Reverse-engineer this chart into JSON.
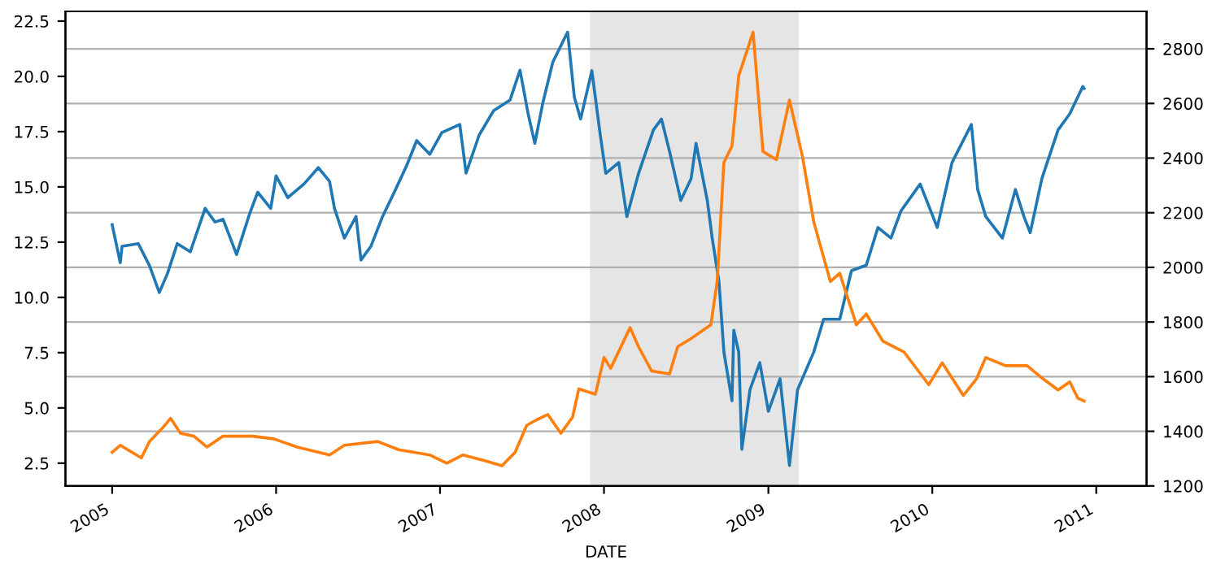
{
  "chart_data": {
    "type": "line",
    "xlabel": "DATE",
    "grid": "y2",
    "xlim": [
      "2004-09-19",
      "2011-04-23"
    ],
    "xticks": [
      "2005",
      "2006",
      "2007",
      "2008",
      "2009",
      "2010",
      "2011"
    ],
    "ylim": [
      1.47,
      22.94
    ],
    "yticks": [
      {
        "value": 2.5,
        "label": "2.5"
      },
      {
        "value": 5,
        "label": "5.0"
      },
      {
        "value": 7.5,
        "label": "7.5"
      },
      {
        "value": 10,
        "label": "10.0"
      },
      {
        "value": 12.5,
        "label": "12.5"
      },
      {
        "value": 15,
        "label": "15.0"
      },
      {
        "value": 17.5,
        "label": "17.5"
      },
      {
        "value": 20,
        "label": "20.0"
      },
      {
        "value": 22.5,
        "label": "22.5"
      }
    ],
    "y2lim": [
      1200,
      2937
    ],
    "y2ticks": [
      1200,
      1400,
      1600,
      1800,
      2000,
      2200,
      2400,
      2600,
      2800
    ],
    "bands": [
      {
        "axis": "x",
        "from": "2007-12-01",
        "to": "2009-03-10",
        "color": "#e5e5e5"
      }
    ],
    "series": [
      {
        "color": "#1f77b4",
        "axis": "y2",
        "x": [
          "2005-01-01",
          "2005-01-19",
          "2005-01-23",
          "2005-02-28",
          "2005-03-25",
          "2005-04-16",
          "2005-05-04",
          "2005-05-26",
          "2005-06-24",
          "2005-07-27",
          "2005-08-18",
          "2005-09-05",
          "2005-10-05",
          "2005-11-03",
          "2005-11-21",
          "2005-12-20",
          "2006-01-01",
          "2006-01-27",
          "2006-03-04",
          "2006-04-05",
          "2006-04-30",
          "2006-05-11",
          "2006-06-02",
          "2006-06-28",
          "2006-07-09",
          "2006-07-31",
          "2006-08-26",
          "2006-09-24",
          "2006-10-19",
          "2006-11-10",
          "2006-12-09",
          "2007-01-05",
          "2007-02-14",
          "2007-02-28",
          "2007-03-29",
          "2007-04-30",
          "2007-06-06",
          "2007-06-28",
          "2007-07-16",
          "2007-07-31",
          "2007-08-18",
          "2007-09-09",
          "2007-10-12",
          "2007-10-27",
          "2007-11-10",
          "2007-12-05",
          "2007-12-24",
          "2008-01-05",
          "2008-02-03",
          "2008-02-21",
          "2008-03-18",
          "2008-04-20",
          "2008-05-08",
          "2008-05-26",
          "2008-06-20",
          "2008-07-13",
          "2008-07-24",
          "2008-08-18",
          "2008-08-29",
          "2008-09-13",
          "2008-09-24",
          "2008-10-12",
          "2008-10-16",
          "2008-10-27",
          "2008-11-03",
          "2008-11-21",
          "2008-12-13",
          "2009-01-01",
          "2009-01-27",
          "2009-02-17",
          "2009-03-07",
          "2009-04-12",
          "2009-05-04",
          "2009-06-09",
          "2009-07-05",
          "2009-08-07",
          "2009-09-02",
          "2009-10-01",
          "2009-10-23",
          "2009-12-05",
          "2010-01-12",
          "2010-02-14",
          "2010-03-29",
          "2010-04-12",
          "2010-04-30",
          "2010-06-06",
          "2010-07-05",
          "2010-07-24",
          "2010-08-07",
          "2010-09-02",
          "2010-10-08",
          "2010-11-03",
          "2010-12-02",
          "2010-12-05"
        ],
        "values": [
          2156,
          2017,
          2077,
          2087,
          2007,
          1908,
          1977,
          2087,
          2057,
          2216,
          2166,
          2176,
          2047,
          2196,
          2275,
          2216,
          2335,
          2255,
          2305,
          2365,
          2315,
          2216,
          2107,
          2186,
          2027,
          2077,
          2186,
          2285,
          2374,
          2464,
          2414,
          2493,
          2523,
          2345,
          2484,
          2573,
          2613,
          2722,
          2563,
          2454,
          2603,
          2751,
          2861,
          2623,
          2543,
          2720,
          2482,
          2344,
          2384,
          2186,
          2344,
          2503,
          2543,
          2424,
          2245,
          2325,
          2454,
          2245,
          2107,
          1948,
          1690,
          1512,
          1770,
          1690,
          1334,
          1552,
          1651,
          1473,
          1592,
          1275,
          1552,
          1690,
          1810,
          1810,
          1988,
          2008,
          2146,
          2107,
          2206,
          2305,
          2146,
          2384,
          2523,
          2285,
          2186,
          2107,
          2285,
          2186,
          2127,
          2325,
          2503,
          2562,
          2662,
          2655
        ]
      },
      {
        "color": "#ff7f0e",
        "axis": "y",
        "x": [
          "2005-01-01",
          "2005-01-19",
          "2005-03-07",
          "2005-03-25",
          "2005-04-23",
          "2005-05-11",
          "2005-06-02",
          "2005-07-02",
          "2005-07-31",
          "2005-09-05",
          "2005-11-10",
          "2005-12-27",
          "2006-02-17",
          "2006-04-30",
          "2006-06-02",
          "2006-08-15",
          "2006-10-01",
          "2006-12-09",
          "2007-01-16",
          "2007-02-21",
          "2007-04-09",
          "2007-05-19",
          "2007-06-17",
          "2007-07-13",
          "2007-08-04",
          "2007-08-29",
          "2007-09-27",
          "2007-10-23",
          "2007-11-06",
          "2007-12-13",
          "2008-01-01",
          "2008-01-16",
          "2008-02-28",
          "2008-03-18",
          "2008-04-16",
          "2008-05-26",
          "2008-06-13",
          "2008-07-13",
          "2008-08-26",
          "2008-09-09",
          "2008-09-24",
          "2008-10-12",
          "2008-10-27",
          "2008-11-28",
          "2008-12-20",
          "2009-01-19",
          "2009-02-17",
          "2009-03-18",
          "2009-04-12",
          "2009-05-19",
          "2009-06-09",
          "2009-07-16",
          "2009-08-07",
          "2009-09-13",
          "2009-10-30",
          "2009-12-24",
          "2010-01-23",
          "2010-03-11",
          "2010-04-09",
          "2010-04-30",
          "2010-06-13",
          "2010-07-31",
          "2010-08-29",
          "2010-10-08",
          "2010-11-03",
          "2010-11-21",
          "2010-12-05"
        ],
        "values": [
          2.99,
          3.31,
          2.74,
          3.48,
          4.09,
          4.53,
          3.85,
          3.72,
          3.23,
          3.72,
          3.72,
          3.6,
          3.23,
          2.87,
          3.31,
          3.48,
          3.11,
          2.87,
          2.5,
          2.87,
          2.62,
          2.38,
          2.99,
          4.21,
          4.46,
          4.7,
          3.85,
          4.58,
          5.86,
          5.62,
          7.28,
          6.79,
          8.63,
          7.77,
          6.67,
          6.54,
          7.77,
          8.14,
          8.76,
          10.72,
          16.11,
          16.85,
          20.03,
          22.0,
          16.6,
          16.23,
          18.93,
          16.36,
          13.42,
          10.72,
          11.09,
          8.76,
          9.25,
          8.02,
          7.53,
          6.05,
          7.04,
          5.56,
          6.3,
          7.28,
          6.91,
          6.91,
          6.42,
          5.81,
          6.18,
          5.44,
          5.31
        ]
      }
    ]
  }
}
